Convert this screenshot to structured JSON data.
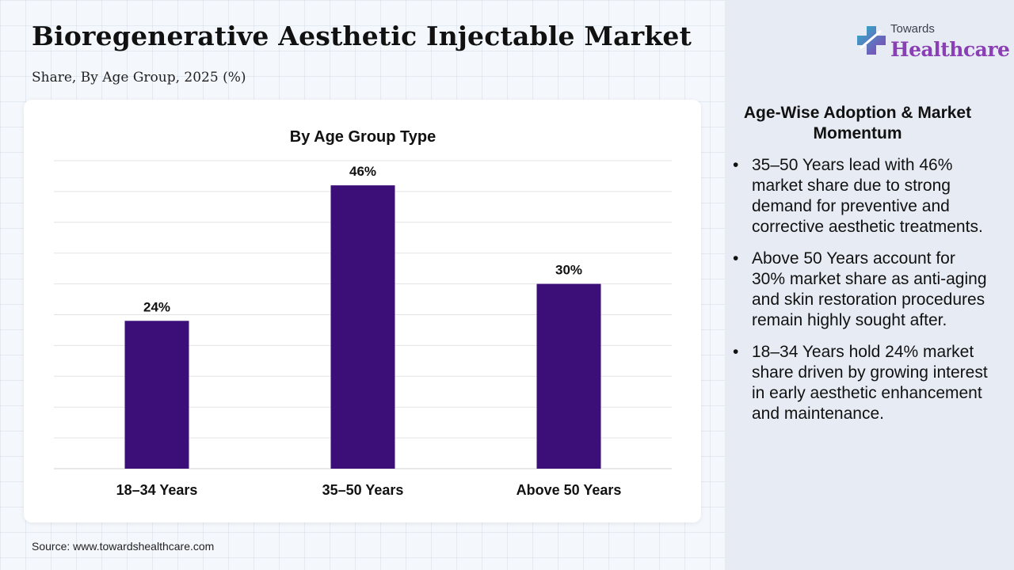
{
  "header": {
    "title": "Bioregenerative Aesthetic Injectable Market",
    "subtitle": "Share, By Age Group, 2025 (%)"
  },
  "logo": {
    "top_text": "Towards",
    "main_text": "Healthcare",
    "icon": "medical-cross-icon"
  },
  "panel": {
    "heading": "Age-Wise Adoption & Market Momentum",
    "bullets": [
      "35–50 Years lead with 46% market share due to strong demand for preventive and corrective aesthetic treatments.",
      "Above 50 Years account for 30% market share as anti-aging and skin restoration procedures remain highly sought after.",
      "18–34 Years hold 24% market share driven by growing interest in early aesthetic enhancement and maintenance."
    ]
  },
  "source": "Source: www.towardshealthcare.com",
  "colors": {
    "bar": "#3c0e78",
    "grid": "#e3e3e3",
    "brand": "#8a3fb5"
  },
  "chart_data": {
    "type": "bar",
    "title": "By Age Group Type",
    "categories": [
      "18–34 Years",
      "35–50 Years",
      "Above 50 Years"
    ],
    "values": [
      24,
      46,
      30
    ],
    "data_labels": [
      "24%",
      "46%",
      "30%"
    ],
    "ylim": [
      0,
      50
    ],
    "grid": true,
    "legend": "none"
  }
}
